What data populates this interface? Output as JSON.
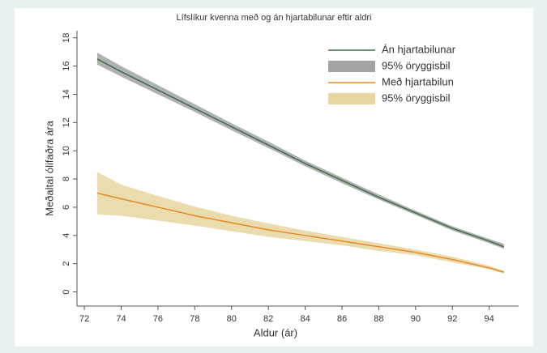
{
  "chart_data": {
    "type": "line",
    "title": "Lífslíkur kvenna með og án hjartabilunar eftir aldri",
    "x_label": "Aldur (ár)",
    "y_label": "Meðaltal ólifaðra ára",
    "x": [
      72.7,
      74,
      76,
      78,
      80,
      82,
      84,
      86,
      88,
      90,
      92,
      94,
      94.8
    ],
    "series": [
      {
        "name": "Án hjartabilunar",
        "color": "#3f6e45",
        "values": [
          16.5,
          15.6,
          14.3,
          13.0,
          11.7,
          10.4,
          9.1,
          7.9,
          6.7,
          5.6,
          4.5,
          3.6,
          3.2
        ],
        "band": {
          "name": "95% öryggisbil",
          "color": "#a3a3a3",
          "lower": [
            16.1,
            15.25,
            14.0,
            12.75,
            11.45,
            10.2,
            8.9,
            7.7,
            6.55,
            5.45,
            4.35,
            3.45,
            3.05
          ],
          "upper": [
            16.95,
            16.0,
            14.65,
            13.3,
            11.95,
            10.65,
            9.3,
            8.1,
            6.9,
            5.75,
            4.65,
            3.75,
            3.4
          ]
        }
      },
      {
        "name": "Með hjartabilun",
        "color": "#e8892a",
        "values": [
          7.0,
          6.6,
          6.0,
          5.4,
          4.9,
          4.4,
          4.0,
          3.6,
          3.2,
          2.8,
          2.3,
          1.7,
          1.4
        ],
        "band": {
          "name": "95% öryggisbil",
          "color": "#e8d6a0",
          "lower": [
            5.5,
            5.4,
            5.05,
            4.7,
            4.3,
            3.9,
            3.6,
            3.3,
            2.9,
            2.6,
            2.1,
            1.6,
            1.3
          ],
          "upper": [
            8.5,
            7.6,
            6.8,
            6.05,
            5.4,
            4.85,
            4.35,
            3.9,
            3.45,
            3.0,
            2.5,
            1.85,
            1.5
          ]
        }
      }
    ],
    "xlim": [
      71.6,
      95.6
    ],
    "ylim": [
      -1,
      18.5
    ],
    "xticks": [
      72,
      74,
      76,
      78,
      80,
      82,
      84,
      86,
      88,
      90,
      92,
      94
    ],
    "yticks": [
      0,
      2,
      4,
      6,
      8,
      10,
      12,
      14,
      16,
      18
    ],
    "legend": "top-right"
  }
}
